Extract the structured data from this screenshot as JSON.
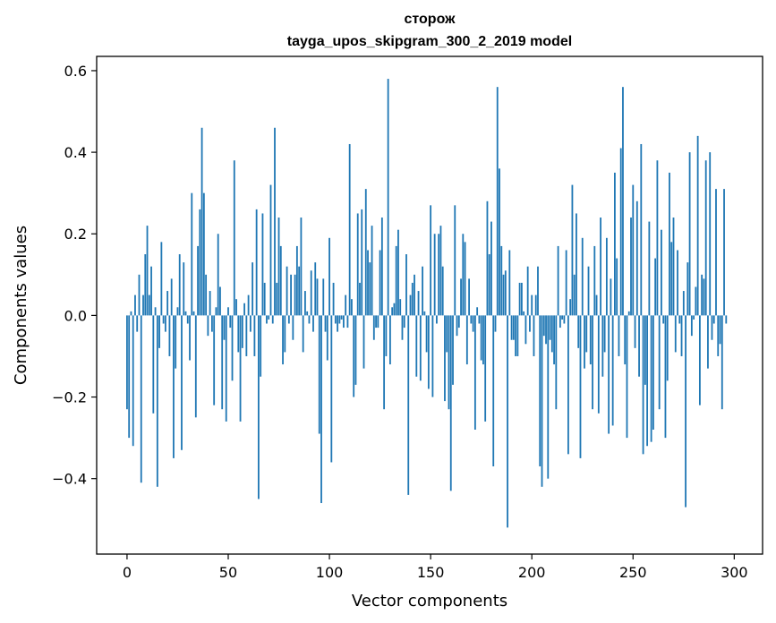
{
  "chart_data": {
    "type": "bar",
    "title": "сторож",
    "subtitle": "tayga_upos_skipgram_300_2_2019 model",
    "xlabel": "Vector components",
    "ylabel": "Components values",
    "xlim": [
      -15,
      314
    ],
    "ylim": [
      -0.585,
      0.635
    ],
    "x_ticks": [
      0,
      50,
      100,
      150,
      200,
      250,
      300
    ],
    "x_tick_labels": [
      "0",
      "50",
      "100",
      "150",
      "200",
      "250",
      "300"
    ],
    "y_ticks": [
      -0.4,
      -0.2,
      0.0,
      0.2,
      0.4,
      0.6
    ],
    "y_tick_labels": [
      "−0.4",
      "−0.2",
      "0.0",
      "0.2",
      "0.4",
      "0.6"
    ],
    "bar_color": "#1f77b4",
    "grid": false,
    "values": [
      -0.23,
      -0.3,
      0.01,
      -0.32,
      0.05,
      -0.04,
      0.1,
      -0.41,
      0.05,
      0.15,
      0.22,
      0.05,
      0.12,
      -0.24,
      0.02,
      -0.42,
      -0.08,
      0.18,
      -0.02,
      -0.04,
      0.06,
      -0.1,
      0.09,
      -0.35,
      -0.13,
      0.02,
      0.15,
      -0.33,
      0.13,
      0.01,
      -0.02,
      -0.11,
      0.3,
      0.01,
      -0.25,
      0.17,
      0.26,
      0.46,
      0.3,
      0.1,
      -0.05,
      0.06,
      -0.04,
      -0.22,
      0.02,
      0.2,
      0.07,
      -0.23,
      -0.06,
      -0.26,
      0.02,
      -0.03,
      -0.16,
      0.38,
      0.04,
      -0.09,
      -0.26,
      -0.08,
      0.03,
      -0.1,
      0.05,
      -0.04,
      0.13,
      -0.1,
      0.26,
      -0.45,
      -0.15,
      0.25,
      0.08,
      -0.02,
      -0.01,
      0.32,
      -0.02,
      0.46,
      0.08,
      0.24,
      0.17,
      -0.12,
      -0.09,
      0.12,
      -0.02,
      0.1,
      -0.06,
      0.1,
      0.17,
      0.12,
      0.24,
      -0.09,
      0.06,
      0.01,
      -0.02,
      0.11,
      -0.04,
      0.13,
      0.09,
      -0.29,
      -0.46,
      0.09,
      -0.04,
      -0.11,
      0.19,
      -0.36,
      0.08,
      -0.02,
      -0.04,
      -0.02,
      -0.01,
      -0.03,
      0.05,
      -0.03,
      0.42,
      0.04,
      -0.2,
      -0.17,
      0.25,
      0.08,
      0.26,
      -0.13,
      0.31,
      0.16,
      0.13,
      0.22,
      -0.06,
      -0.03,
      -0.03,
      0.16,
      0.24,
      -0.23,
      -0.1,
      0.58,
      -0.12,
      0.02,
      0.03,
      0.17,
      0.21,
      0.04,
      -0.06,
      -0.03,
      0.15,
      -0.44,
      0.05,
      0.08,
      0.1,
      -0.15,
      0.06,
      -0.16,
      0.12,
      0.01,
      -0.09,
      -0.18,
      0.27,
      -0.2,
      0.2,
      -0.02,
      0.2,
      0.22,
      0.12,
      -0.21,
      -0.09,
      -0.23,
      -0.43,
      -0.17,
      0.27,
      -0.05,
      -0.03,
      0.09,
      0.2,
      0.18,
      -0.12,
      0.09,
      -0.02,
      -0.04,
      -0.28,
      0.02,
      -0.02,
      -0.11,
      -0.12,
      -0.26,
      0.28,
      0.15,
      0.23,
      -0.37,
      -0.04,
      0.56,
      0.36,
      0.17,
      0.1,
      0.11,
      -0.52,
      0.16,
      -0.06,
      -0.06,
      -0.1,
      -0.1,
      0.08,
      0.08,
      0.01,
      -0.07,
      0.12,
      -0.04,
      0.05,
      -0.1,
      0.05,
      0.12,
      -0.37,
      -0.42,
      -0.05,
      -0.07,
      -0.4,
      -0.06,
      -0.09,
      -0.12,
      -0.23,
      0.17,
      -0.03,
      -0.01,
      -0.02,
      0.16,
      -0.34,
      0.04,
      0.32,
      0.1,
      0.25,
      -0.08,
      -0.35,
      0.19,
      -0.13,
      -0.09,
      0.12,
      -0.12,
      -0.23,
      0.17,
      0.05,
      -0.24,
      0.24,
      -0.15,
      -0.09,
      0.19,
      -0.29,
      0.09,
      -0.27,
      0.35,
      0.14,
      -0.1,
      0.41,
      0.56,
      -0.12,
      -0.3,
      0.01,
      0.24,
      0.32,
      -0.08,
      0.28,
      -0.15,
      0.42,
      -0.34,
      -0.17,
      -0.32,
      0.23,
      -0.31,
      -0.28,
      0.14,
      0.38,
      -0.23,
      0.21,
      -0.02,
      -0.3,
      -0.16,
      0.35,
      0.18,
      0.24,
      -0.09,
      0.16,
      -0.02,
      -0.1,
      0.06,
      -0.47,
      0.13,
      0.4,
      -0.05,
      -0.01,
      0.07,
      0.44,
      -0.22,
      0.1,
      0.09,
      0.38,
      -0.13,
      0.4,
      -0.06,
      -0.02,
      0.31,
      -0.1,
      -0.07,
      -0.23,
      0.31,
      -0.02
    ]
  }
}
